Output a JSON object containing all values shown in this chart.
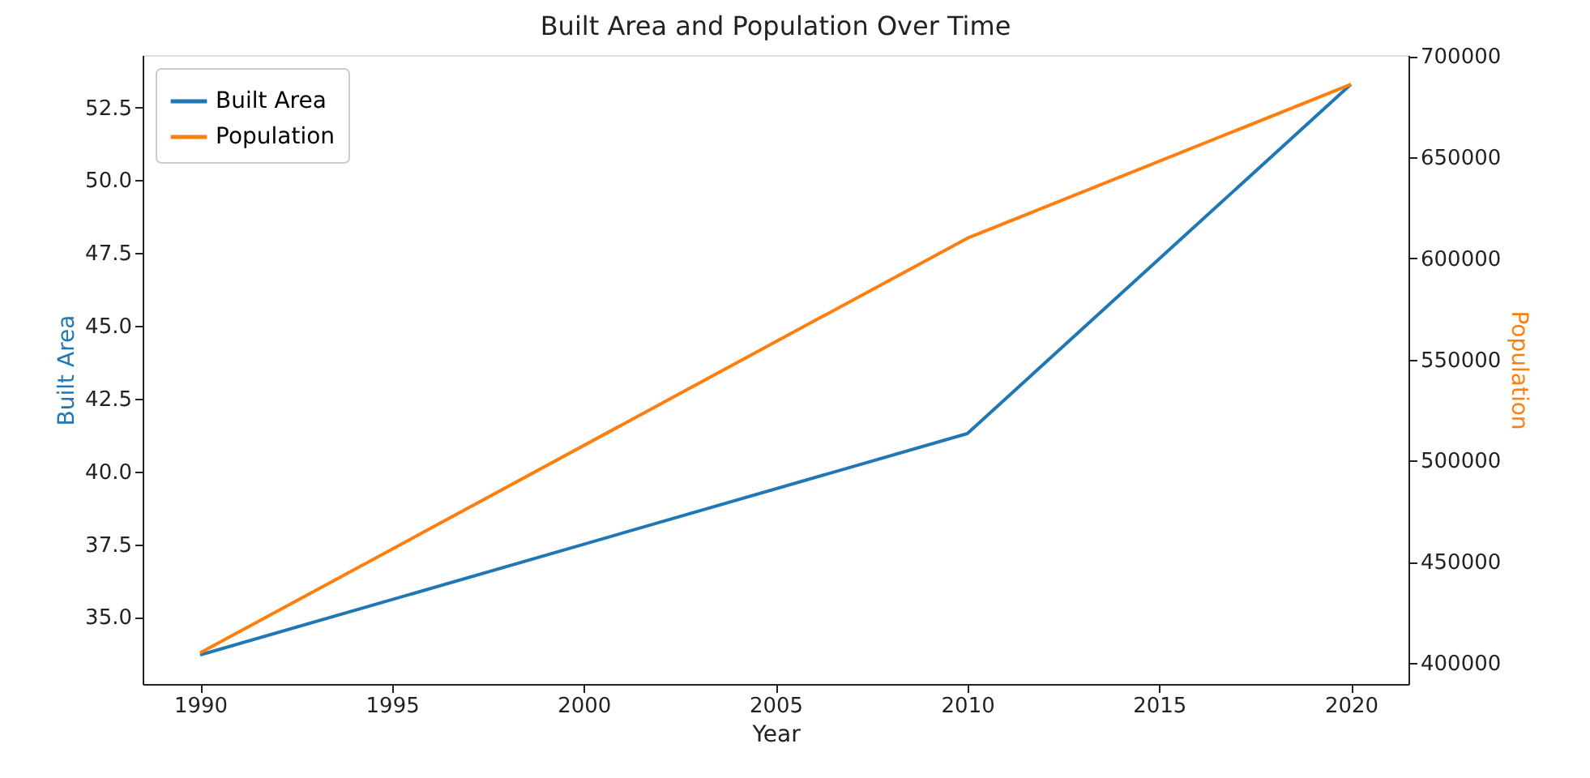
{
  "chart_data": {
    "type": "line",
    "title": "Built Area and Population Over Time",
    "xlabel": "Year",
    "ylabel": "Built Area",
    "y2label": "Population",
    "x": [
      1990,
      2010,
      2020
    ],
    "series": [
      {
        "name": "Built Area",
        "color": "#1f77b4",
        "values": [
          33.7,
          41.3,
          53.3
        ]
      },
      {
        "name": "Population",
        "color": "#ff7f0e",
        "axis": "y2",
        "values": [
          405000,
          610000,
          686000
        ]
      }
    ],
    "xlim": [
      1988.5,
      2021.5
    ],
    "xticks": [
      1990,
      1995,
      2000,
      2005,
      2010,
      2015,
      2020
    ],
    "ylim": [
      32.7,
      54.3
    ],
    "yticks": [
      {
        "value": 35,
        "label": "35.0"
      },
      37.5,
      {
        "value": 40,
        "label": "40.0"
      },
      42.5,
      {
        "value": 45,
        "label": "45.0"
      },
      47.5,
      {
        "value": 50,
        "label": "50.0"
      },
      52.5
    ],
    "y2lim": [
      389600,
      700500
    ],
    "y2ticks": [
      400000,
      450000,
      500000,
      550000,
      600000,
      650000,
      700000
    ],
    "grid": false,
    "legend": "top left",
    "marker": "none",
    "line_style": "solid"
  }
}
